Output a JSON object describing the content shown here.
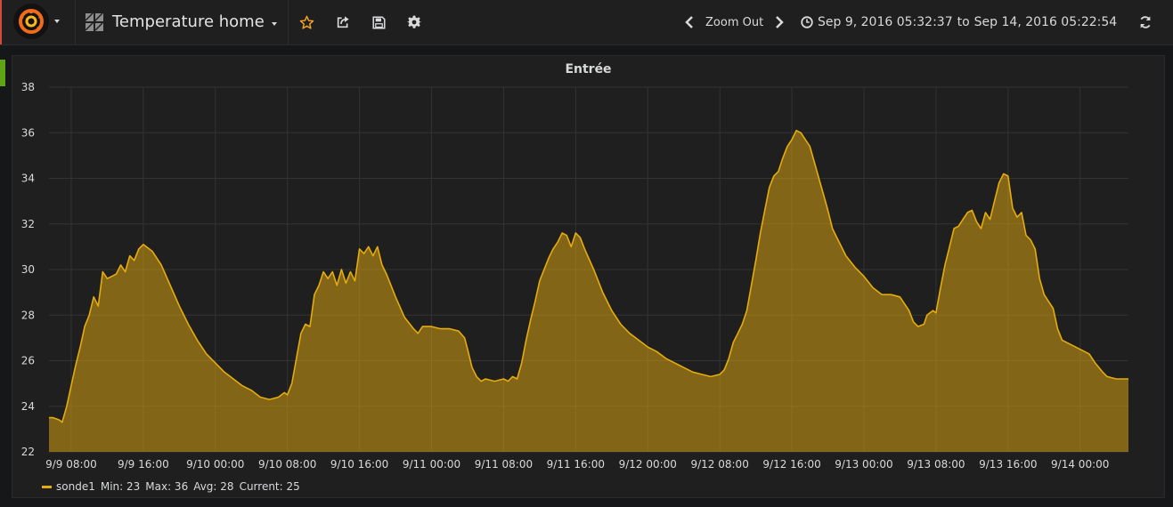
{
  "header": {
    "dashboard_title": "Temperature home",
    "zoom_out_label": "Zoom Out",
    "time_from": "Sep 9, 2016 05:32:37",
    "time_to_word": "to",
    "time_to": "Sep 14, 2016 05:22:54",
    "icons": {
      "logo": "grafana-logo-icon",
      "dashboards": "dashboard-grid-icon",
      "star": "star-icon",
      "share": "share-icon",
      "save": "save-icon",
      "settings": "gear-icon",
      "zoom_back": "chevron-left-icon",
      "zoom_forward": "chevron-right-icon",
      "clock": "clock-icon",
      "refresh": "refresh-icon"
    },
    "colors": {
      "brand_accent": "#d44a3a",
      "star": "#f5a623",
      "row_marker": "#5da514"
    }
  },
  "panel": {
    "title": "Entrée"
  },
  "legend": {
    "series_name": "sonde1",
    "min": "Min: 23",
    "max": "Max: 36",
    "avg": "Avg: 28",
    "current": "Current: 25"
  },
  "chart_data": {
    "type": "area",
    "title": "Entrée",
    "xlabel": "",
    "ylabel": "",
    "ylim": [
      22,
      38
    ],
    "yticks": [
      22,
      24,
      26,
      28,
      30,
      32,
      34,
      36,
      38
    ],
    "xlim": [
      "2016-09-09 05:32",
      "2016-09-14 05:22"
    ],
    "xticks": [
      {
        "t": "2016-09-09 08:00",
        "label": "9/9 08:00"
      },
      {
        "t": "2016-09-09 16:00",
        "label": "9/9 16:00"
      },
      {
        "t": "2016-09-10 00:00",
        "label": "9/10 00:00"
      },
      {
        "t": "2016-09-10 08:00",
        "label": "9/10 08:00"
      },
      {
        "t": "2016-09-10 16:00",
        "label": "9/10 16:00"
      },
      {
        "t": "2016-09-11 00:00",
        "label": "9/11 00:00"
      },
      {
        "t": "2016-09-11 08:00",
        "label": "9/11 08:00"
      },
      {
        "t": "2016-09-11 16:00",
        "label": "9/11 16:00"
      },
      {
        "t": "2016-09-12 00:00",
        "label": "9/12 00:00"
      },
      {
        "t": "2016-09-12 08:00",
        "label": "9/12 08:00"
      },
      {
        "t": "2016-09-12 16:00",
        "label": "9/12 16:00"
      },
      {
        "t": "2016-09-13 00:00",
        "label": "9/13 00:00"
      },
      {
        "t": "2016-09-13 08:00",
        "label": "9/13 08:00"
      },
      {
        "t": "2016-09-13 16:00",
        "label": "9/13 16:00"
      },
      {
        "t": "2016-09-14 00:00",
        "label": "9/14 00:00"
      }
    ],
    "grid": true,
    "legend_position": "bottom-left",
    "series": [
      {
        "name": "sonde1",
        "color": "#e5ac0e",
        "points": [
          [
            "2016-09-09 05:32",
            23.5
          ],
          [
            "2016-09-09 06:00",
            23.5
          ],
          [
            "2016-09-09 06:40",
            23.4
          ],
          [
            "2016-09-09 07:00",
            23.3
          ],
          [
            "2016-09-09 07:30",
            24.0
          ],
          [
            "2016-09-09 08:00",
            24.9
          ],
          [
            "2016-09-09 08:30",
            25.8
          ],
          [
            "2016-09-09 09:00",
            26.6
          ],
          [
            "2016-09-09 09:30",
            27.5
          ],
          [
            "2016-09-09 10:00",
            28.0
          ],
          [
            "2016-09-09 10:30",
            28.8
          ],
          [
            "2016-09-09 11:00",
            28.4
          ],
          [
            "2016-09-09 11:30",
            29.9
          ],
          [
            "2016-09-09 12:00",
            29.6
          ],
          [
            "2016-09-09 12:30",
            29.7
          ],
          [
            "2016-09-09 13:00",
            29.8
          ],
          [
            "2016-09-09 13:30",
            30.2
          ],
          [
            "2016-09-09 14:00",
            29.9
          ],
          [
            "2016-09-09 14:30",
            30.6
          ],
          [
            "2016-09-09 15:00",
            30.4
          ],
          [
            "2016-09-09 15:30",
            30.9
          ],
          [
            "2016-09-09 16:00",
            31.1
          ],
          [
            "2016-09-09 17:00",
            30.8
          ],
          [
            "2016-09-09 18:00",
            30.2
          ],
          [
            "2016-09-09 19:00",
            29.3
          ],
          [
            "2016-09-09 20:00",
            28.4
          ],
          [
            "2016-09-09 21:00",
            27.6
          ],
          [
            "2016-09-09 22:00",
            26.9
          ],
          [
            "2016-09-09 23:00",
            26.3
          ],
          [
            "2016-09-10 00:00",
            25.9
          ],
          [
            "2016-09-10 01:00",
            25.5
          ],
          [
            "2016-09-10 02:00",
            25.2
          ],
          [
            "2016-09-10 03:00",
            24.9
          ],
          [
            "2016-09-10 04:00",
            24.7
          ],
          [
            "2016-09-10 05:00",
            24.4
          ],
          [
            "2016-09-10 06:00",
            24.3
          ],
          [
            "2016-09-10 07:00",
            24.4
          ],
          [
            "2016-09-10 07:40",
            24.6
          ],
          [
            "2016-09-10 08:00",
            24.5
          ],
          [
            "2016-09-10 08:30",
            25.0
          ],
          [
            "2016-09-10 09:00",
            26.1
          ],
          [
            "2016-09-10 09:30",
            27.2
          ],
          [
            "2016-09-10 10:00",
            27.6
          ],
          [
            "2016-09-10 10:30",
            27.5
          ],
          [
            "2016-09-10 11:00",
            28.9
          ],
          [
            "2016-09-10 11:30",
            29.3
          ],
          [
            "2016-09-10 12:00",
            29.9
          ],
          [
            "2016-09-10 12:30",
            29.6
          ],
          [
            "2016-09-10 13:00",
            29.9
          ],
          [
            "2016-09-10 13:30",
            29.3
          ],
          [
            "2016-09-10 14:00",
            30.0
          ],
          [
            "2016-09-10 14:30",
            29.4
          ],
          [
            "2016-09-10 15:00",
            29.9
          ],
          [
            "2016-09-10 15:30",
            29.5
          ],
          [
            "2016-09-10 16:00",
            30.9
          ],
          [
            "2016-09-10 16:30",
            30.7
          ],
          [
            "2016-09-10 17:00",
            31.0
          ],
          [
            "2016-09-10 17:30",
            30.6
          ],
          [
            "2016-09-10 18:00",
            31.0
          ],
          [
            "2016-09-10 18:30",
            30.2
          ],
          [
            "2016-09-10 19:00",
            29.8
          ],
          [
            "2016-09-10 20:00",
            28.8
          ],
          [
            "2016-09-10 21:00",
            27.9
          ],
          [
            "2016-09-10 22:00",
            27.4
          ],
          [
            "2016-09-10 22:30",
            27.2
          ],
          [
            "2016-09-10 23:00",
            27.5
          ],
          [
            "2016-09-11 00:00",
            27.5
          ],
          [
            "2016-09-11 01:00",
            27.4
          ],
          [
            "2016-09-11 02:00",
            27.4
          ],
          [
            "2016-09-11 03:00",
            27.3
          ],
          [
            "2016-09-11 03:40",
            27.0
          ],
          [
            "2016-09-11 04:00",
            26.5
          ],
          [
            "2016-09-11 04:30",
            25.7
          ],
          [
            "2016-09-11 05:00",
            25.3
          ],
          [
            "2016-09-11 05:30",
            25.1
          ],
          [
            "2016-09-11 06:00",
            25.2
          ],
          [
            "2016-09-11 07:00",
            25.1
          ],
          [
            "2016-09-11 08:00",
            25.2
          ],
          [
            "2016-09-11 08:30",
            25.1
          ],
          [
            "2016-09-11 09:00",
            25.3
          ],
          [
            "2016-09-11 09:30",
            25.2
          ],
          [
            "2016-09-11 10:00",
            25.9
          ],
          [
            "2016-09-11 10:30",
            26.9
          ],
          [
            "2016-09-11 11:00",
            27.8
          ],
          [
            "2016-09-11 11:30",
            28.6
          ],
          [
            "2016-09-11 12:00",
            29.5
          ],
          [
            "2016-09-11 12:30",
            30.0
          ],
          [
            "2016-09-11 13:00",
            30.5
          ],
          [
            "2016-09-11 13:30",
            30.9
          ],
          [
            "2016-09-11 14:00",
            31.2
          ],
          [
            "2016-09-11 14:30",
            31.6
          ],
          [
            "2016-09-11 15:00",
            31.5
          ],
          [
            "2016-09-11 15:30",
            31.0
          ],
          [
            "2016-09-11 16:00",
            31.6
          ],
          [
            "2016-09-11 16:30",
            31.4
          ],
          [
            "2016-09-11 17:00",
            30.9
          ],
          [
            "2016-09-11 18:00",
            30.0
          ],
          [
            "2016-09-11 19:00",
            29.0
          ],
          [
            "2016-09-11 20:00",
            28.2
          ],
          [
            "2016-09-11 21:00",
            27.6
          ],
          [
            "2016-09-11 22:00",
            27.2
          ],
          [
            "2016-09-11 23:00",
            26.9
          ],
          [
            "2016-09-12 00:00",
            26.6
          ],
          [
            "2016-09-12 01:00",
            26.4
          ],
          [
            "2016-09-12 02:00",
            26.1
          ],
          [
            "2016-09-12 03:00",
            25.9
          ],
          [
            "2016-09-12 04:00",
            25.7
          ],
          [
            "2016-09-12 05:00",
            25.5
          ],
          [
            "2016-09-12 06:00",
            25.4
          ],
          [
            "2016-09-12 07:00",
            25.3
          ],
          [
            "2016-09-12 08:00",
            25.4
          ],
          [
            "2016-09-12 08:30",
            25.6
          ],
          [
            "2016-09-12 09:00",
            26.1
          ],
          [
            "2016-09-12 09:30",
            26.8
          ],
          [
            "2016-09-12 10:00",
            27.2
          ],
          [
            "2016-09-12 10:30",
            27.6
          ],
          [
            "2016-09-12 11:00",
            28.2
          ],
          [
            "2016-09-12 11:30",
            29.3
          ],
          [
            "2016-09-12 12:00",
            30.4
          ],
          [
            "2016-09-12 12:30",
            31.6
          ],
          [
            "2016-09-12 13:00",
            32.6
          ],
          [
            "2016-09-12 13:30",
            33.6
          ],
          [
            "2016-09-12 14:00",
            34.1
          ],
          [
            "2016-09-12 14:30",
            34.3
          ],
          [
            "2016-09-12 15:00",
            34.9
          ],
          [
            "2016-09-12 15:30",
            35.4
          ],
          [
            "2016-09-12 16:00",
            35.7
          ],
          [
            "2016-09-12 16:30",
            36.1
          ],
          [
            "2016-09-12 17:00",
            36.0
          ],
          [
            "2016-09-12 17:30",
            35.7
          ],
          [
            "2016-09-12 18:00",
            35.4
          ],
          [
            "2016-09-12 18:30",
            34.7
          ],
          [
            "2016-09-12 19:00",
            34.0
          ],
          [
            "2016-09-12 19:30",
            33.3
          ],
          [
            "2016-09-12 20:00",
            32.6
          ],
          [
            "2016-09-12 20:30",
            31.8
          ],
          [
            "2016-09-12 21:00",
            31.4
          ],
          [
            "2016-09-12 22:00",
            30.6
          ],
          [
            "2016-09-12 23:00",
            30.1
          ],
          [
            "2016-09-13 00:00",
            29.7
          ],
          [
            "2016-09-13 01:00",
            29.2
          ],
          [
            "2016-09-13 02:00",
            28.9
          ],
          [
            "2016-09-13 03:00",
            28.9
          ],
          [
            "2016-09-13 04:00",
            28.8
          ],
          [
            "2016-09-13 05:00",
            28.2
          ],
          [
            "2016-09-13 05:30",
            27.7
          ],
          [
            "2016-09-13 06:00",
            27.5
          ],
          [
            "2016-09-13 06:40",
            27.6
          ],
          [
            "2016-09-13 07:00",
            28.0
          ],
          [
            "2016-09-13 07:40",
            28.2
          ],
          [
            "2016-09-13 08:00",
            28.1
          ],
          [
            "2016-09-13 08:30",
            29.2
          ],
          [
            "2016-09-13 09:00",
            30.2
          ],
          [
            "2016-09-13 09:30",
            31.0
          ],
          [
            "2016-09-13 10:00",
            31.8
          ],
          [
            "2016-09-13 10:30",
            31.9
          ],
          [
            "2016-09-13 11:00",
            32.2
          ],
          [
            "2016-09-13 11:30",
            32.5
          ],
          [
            "2016-09-13 12:00",
            32.6
          ],
          [
            "2016-09-13 12:30",
            32.1
          ],
          [
            "2016-09-13 13:00",
            31.8
          ],
          [
            "2016-09-13 13:30",
            32.5
          ],
          [
            "2016-09-13 14:00",
            32.2
          ],
          [
            "2016-09-13 14:30",
            33.0
          ],
          [
            "2016-09-13 15:00",
            33.8
          ],
          [
            "2016-09-13 15:30",
            34.2
          ],
          [
            "2016-09-13 16:00",
            34.1
          ],
          [
            "2016-09-13 16:30",
            32.7
          ],
          [
            "2016-09-13 17:00",
            32.3
          ],
          [
            "2016-09-13 17:30",
            32.5
          ],
          [
            "2016-09-13 18:00",
            31.5
          ],
          [
            "2016-09-13 18:30",
            31.3
          ],
          [
            "2016-09-13 19:00",
            30.9
          ],
          [
            "2016-09-13 19:30",
            29.6
          ],
          [
            "2016-09-13 20:00",
            28.9
          ],
          [
            "2016-09-13 20:30",
            28.6
          ],
          [
            "2016-09-13 21:00",
            28.3
          ],
          [
            "2016-09-13 21:30",
            27.4
          ],
          [
            "2016-09-13 22:00",
            26.9
          ],
          [
            "2016-09-13 23:00",
            26.7
          ],
          [
            "2016-09-14 00:00",
            26.5
          ],
          [
            "2016-09-14 01:00",
            26.3
          ],
          [
            "2016-09-14 01:40",
            25.9
          ],
          [
            "2016-09-14 02:30",
            25.5
          ],
          [
            "2016-09-14 03:00",
            25.3
          ],
          [
            "2016-09-14 04:00",
            25.2
          ],
          [
            "2016-09-14 05:22",
            25.2
          ]
        ]
      }
    ]
  }
}
